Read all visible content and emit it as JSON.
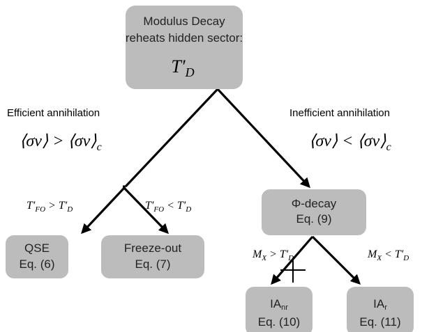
{
  "nodes": [
    {
      "lines": [
        "Modulus Decay",
        "reheats hidden sector:"
      ],
      "math": {
        "text": "T′",
        "sub": "D"
      }
    },
    {
      "lines": [
        "Φ-decay",
        "Eq. (9)"
      ]
    },
    {
      "lines": [
        "QSE",
        "Eq. (6)"
      ]
    },
    {
      "lines": [
        "Freeze-out",
        "Eq. (7)"
      ]
    },
    {
      "label": {
        "text": "IA",
        "sub": "nr"
      },
      "lines": [
        "Eq. (10)"
      ]
    },
    {
      "label": {
        "text": "IA",
        "sub": "r"
      },
      "lines": [
        "Eq. (11)"
      ]
    }
  ],
  "edges": [
    {
      "label": "Efficient annihilation",
      "condition": {
        "left": "⟨σv⟩ > ⟨σv⟩",
        "sub": "c"
      }
    },
    {
      "label": "Inefficient annihilation",
      "condition": {
        "left": "⟨σv⟩ < ⟨σv⟩",
        "sub": "c"
      }
    },
    {
      "condition": [
        {
          "text": "T′",
          "sub": "FO"
        },
        {
          "text": " > T′",
          "sub": "D"
        }
      ]
    },
    {
      "condition": [
        {
          "text": "T′",
          "sub": "FO"
        },
        {
          "text": " < T′",
          "sub": "D"
        }
      ]
    },
    {
      "condition": [
        {
          "text": "M",
          "sub": "X"
        },
        {
          "text": " > T′",
          "sub": "D"
        }
      ]
    },
    {
      "condition": [
        {
          "text": "M",
          "sub": "X"
        },
        {
          "text": " < T′",
          "sub": "D"
        }
      ]
    }
  ]
}
